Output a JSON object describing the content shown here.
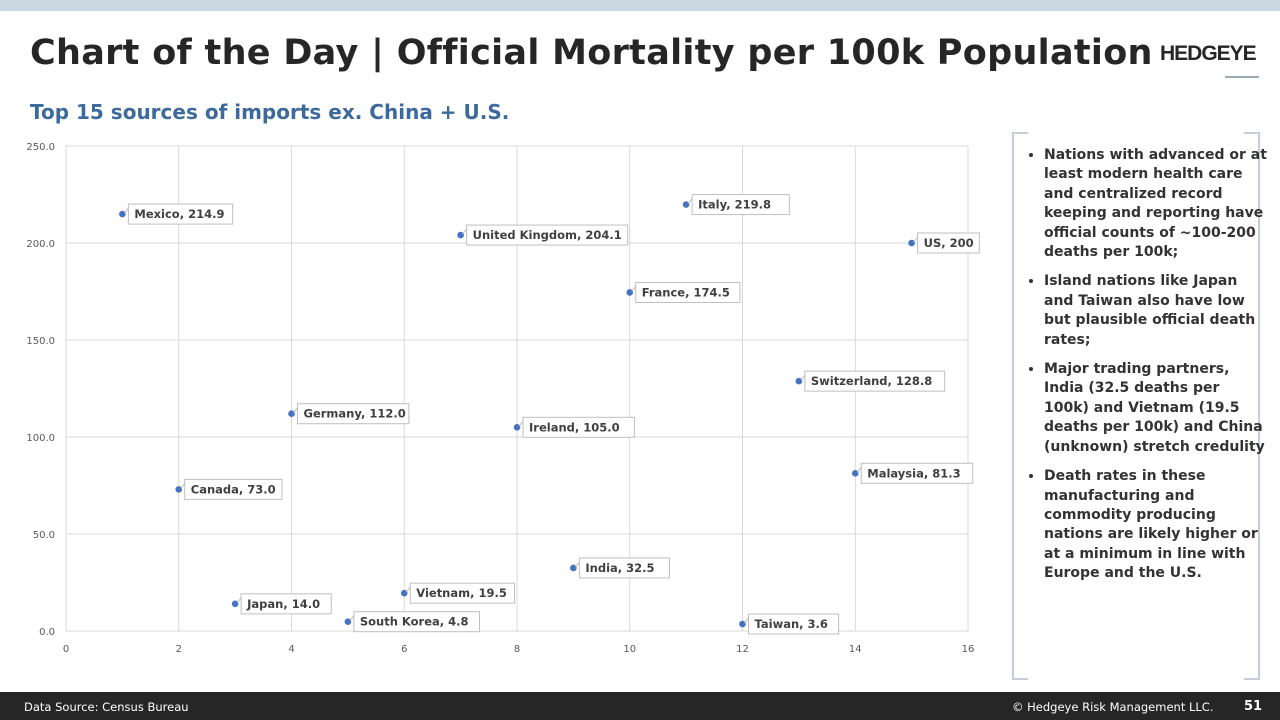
{
  "header": {
    "title": "Chart of the Day | Official Mortality per 100k Population",
    "logo": "HEDGEYE",
    "subtitle": "Top 15 sources of imports ex. China + U.S."
  },
  "chart_data": {
    "type": "scatter",
    "xlim": [
      0,
      16
    ],
    "ylim": [
      0,
      250
    ],
    "xticks": [
      "0",
      "2",
      "4",
      "6",
      "8",
      "10",
      "12",
      "14",
      "16"
    ],
    "yticks": [
      "0.0",
      "50.0",
      "100.0",
      "150.0",
      "200.0",
      "250.0"
    ],
    "grid": true,
    "marker_color": "#4472c4",
    "points": [
      {
        "label": "Mexico",
        "x": 1,
        "y": 214.9,
        "text": "Mexico, 214.9"
      },
      {
        "label": "Canada",
        "x": 2,
        "y": 73.0,
        "text": "Canada, 73.0"
      },
      {
        "label": "Japan",
        "x": 3,
        "y": 14.0,
        "text": "Japan, 14.0"
      },
      {
        "label": "Germany",
        "x": 4,
        "y": 112.0,
        "text": "Germany, 112.0"
      },
      {
        "label": "South Korea",
        "x": 5,
        "y": 4.8,
        "text": "South Korea, 4.8"
      },
      {
        "label": "Vietnam",
        "x": 6,
        "y": 19.5,
        "text": "Vietnam, 19.5"
      },
      {
        "label": "United Kingdom",
        "x": 7,
        "y": 204.1,
        "text": "United Kingdom, 204.1"
      },
      {
        "label": "Ireland",
        "x": 8,
        "y": 105.0,
        "text": "Ireland, 105.0"
      },
      {
        "label": "India",
        "x": 9,
        "y": 32.5,
        "text": "India, 32.5"
      },
      {
        "label": "France",
        "x": 10,
        "y": 174.5,
        "text": "France, 174.5"
      },
      {
        "label": "Italy",
        "x": 11,
        "y": 219.8,
        "text": "Italy, 219.8"
      },
      {
        "label": "Taiwan",
        "x": 12,
        "y": 3.6,
        "text": "Taiwan, 3.6"
      },
      {
        "label": "Switzerland",
        "x": 13,
        "y": 128.8,
        "text": "Switzerland, 128.8"
      },
      {
        "label": "Malaysia",
        "x": 14,
        "y": 81.3,
        "text": "Malaysia, 81.3"
      },
      {
        "label": "US",
        "x": 15,
        "y": 200,
        "text": "US, 200"
      }
    ]
  },
  "sidebar": {
    "bullets": [
      "Nations with advanced or at least modern health care and centralized record keeping and reporting have official counts of ~100-200 deaths per 100k;",
      "Island nations like Japan and Taiwan also have low but plausible official death rates;",
      "Major trading partners, India (32.5 deaths per 100k) and Vietnam (19.5 deaths per 100k) and China (unknown) stretch credulity",
      "Death rates in these manufacturing and commodity producing nations are likely higher or at a minimum in line with Europe and the U.S."
    ]
  },
  "footer": {
    "source": "Data Source: Census Bureau",
    "copyright": "© Hedgeye Risk Management LLC.",
    "page": "51"
  }
}
